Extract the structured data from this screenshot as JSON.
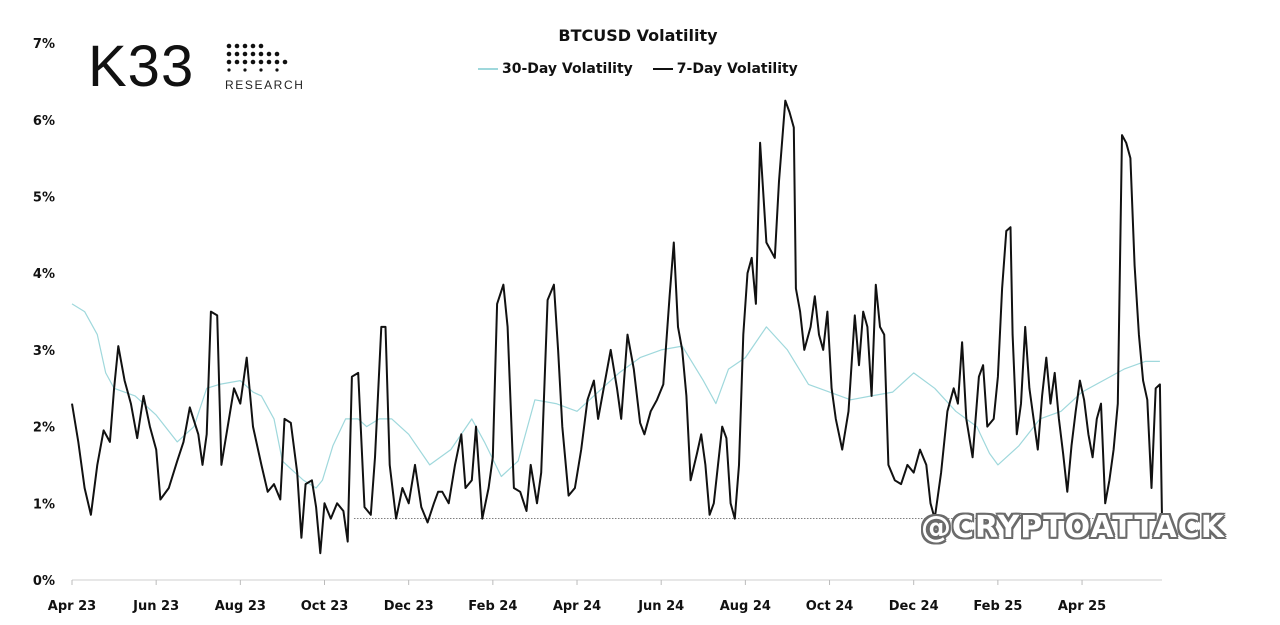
{
  "brand": {
    "logo_text": "K33",
    "logo_subtext": "RESEARCH"
  },
  "watermark": "@CRYPTOATTACK",
  "chart_data": {
    "type": "line",
    "title": "BTCUSD Volatility",
    "xlabel": "",
    "ylabel": "",
    "ylim": [
      0,
      7
    ],
    "y_ticks": [
      "0%",
      "1%",
      "2%",
      "3%",
      "4%",
      "5%",
      "6%",
      "7%"
    ],
    "x_ticks": [
      "Apr 23",
      "Jun 23",
      "Aug 23",
      "Oct 23",
      "Dec 23",
      "Feb 24",
      "Apr 24",
      "Jun 24",
      "Aug 24",
      "Oct 24",
      "Dec 24",
      "Feb 25",
      "Apr 25"
    ],
    "x_unit": "months since Apr 2023",
    "grid": false,
    "legend_position": "top-center",
    "reference_line": {
      "value": 0.8,
      "from_x": 6.7,
      "to_x": 25.85,
      "style": "dotted"
    },
    "series": [
      {
        "name": "30-Day Volatility",
        "color": "#9fd8dc",
        "points": [
          [
            0,
            3.6
          ],
          [
            0.3,
            3.5
          ],
          [
            0.6,
            3.2
          ],
          [
            0.8,
            2.7
          ],
          [
            1.0,
            2.5
          ],
          [
            1.5,
            2.4
          ],
          [
            2.0,
            2.15
          ],
          [
            2.5,
            1.8
          ],
          [
            2.9,
            2.0
          ],
          [
            3.2,
            2.5
          ],
          [
            3.5,
            2.55
          ],
          [
            4.0,
            2.6
          ],
          [
            4.3,
            2.45
          ],
          [
            4.5,
            2.4
          ],
          [
            4.8,
            2.1
          ],
          [
            5.0,
            1.55
          ],
          [
            5.2,
            1.45
          ],
          [
            5.5,
            1.3
          ],
          [
            5.8,
            1.2
          ],
          [
            5.95,
            1.3
          ],
          [
            6.2,
            1.75
          ],
          [
            6.5,
            2.1
          ],
          [
            6.8,
            2.1
          ],
          [
            7.0,
            2.0
          ],
          [
            7.3,
            2.1
          ],
          [
            7.6,
            2.1
          ],
          [
            8.0,
            1.9
          ],
          [
            8.5,
            1.5
          ],
          [
            9.0,
            1.7
          ],
          [
            9.5,
            2.1
          ],
          [
            9.8,
            1.8
          ],
          [
            10.2,
            1.35
          ],
          [
            10.6,
            1.55
          ],
          [
            11.0,
            2.35
          ],
          [
            11.5,
            2.3
          ],
          [
            12.0,
            2.2
          ],
          [
            12.5,
            2.45
          ],
          [
            13.0,
            2.7
          ],
          [
            13.5,
            2.9
          ],
          [
            14.0,
            3.0
          ],
          [
            14.5,
            3.05
          ],
          [
            15.0,
            2.6
          ],
          [
            15.3,
            2.3
          ],
          [
            15.6,
            2.75
          ],
          [
            16.0,
            2.9
          ],
          [
            16.5,
            3.3
          ],
          [
            17.0,
            3.0
          ],
          [
            17.5,
            2.55
          ],
          [
            18.0,
            2.45
          ],
          [
            18.5,
            2.35
          ],
          [
            19.0,
            2.4
          ],
          [
            19.5,
            2.45
          ],
          [
            20.0,
            2.7
          ],
          [
            20.5,
            2.5
          ],
          [
            21.0,
            2.2
          ],
          [
            21.5,
            2.0
          ],
          [
            21.8,
            1.65
          ],
          [
            22.0,
            1.5
          ],
          [
            22.5,
            1.75
          ],
          [
            23.0,
            2.1
          ],
          [
            23.5,
            2.2
          ],
          [
            24.0,
            2.45
          ],
          [
            24.5,
            2.6
          ],
          [
            25.0,
            2.75
          ],
          [
            25.5,
            2.85
          ],
          [
            25.85,
            2.85
          ]
        ]
      },
      {
        "name": "7-Day Volatility",
        "color": "#111111",
        "points": [
          [
            0,
            2.3
          ],
          [
            0.15,
            1.8
          ],
          [
            0.3,
            1.2
          ],
          [
            0.45,
            0.85
          ],
          [
            0.6,
            1.5
          ],
          [
            0.75,
            1.95
          ],
          [
            0.9,
            1.8
          ],
          [
            1.0,
            2.5
          ],
          [
            1.1,
            3.05
          ],
          [
            1.25,
            2.6
          ],
          [
            1.4,
            2.3
          ],
          [
            1.55,
            1.85
          ],
          [
            1.7,
            2.4
          ],
          [
            1.85,
            2.0
          ],
          [
            2.0,
            1.7
          ],
          [
            2.1,
            1.05
          ],
          [
            2.3,
            1.2
          ],
          [
            2.5,
            1.55
          ],
          [
            2.65,
            1.8
          ],
          [
            2.8,
            2.25
          ],
          [
            3.0,
            1.9
          ],
          [
            3.1,
            1.5
          ],
          [
            3.2,
            1.9
          ],
          [
            3.3,
            3.5
          ],
          [
            3.45,
            3.45
          ],
          [
            3.55,
            1.5
          ],
          [
            3.7,
            2.0
          ],
          [
            3.85,
            2.5
          ],
          [
            4.0,
            2.3
          ],
          [
            4.15,
            2.9
          ],
          [
            4.3,
            2.0
          ],
          [
            4.5,
            1.5
          ],
          [
            4.65,
            1.15
          ],
          [
            4.8,
            1.25
          ],
          [
            4.95,
            1.05
          ],
          [
            5.05,
            2.1
          ],
          [
            5.2,
            2.05
          ],
          [
            5.35,
            1.4
          ],
          [
            5.45,
            0.55
          ],
          [
            5.55,
            1.25
          ],
          [
            5.7,
            1.3
          ],
          [
            5.8,
            0.95
          ],
          [
            5.9,
            0.35
          ],
          [
            6.0,
            1.0
          ],
          [
            6.15,
            0.8
          ],
          [
            6.3,
            1.0
          ],
          [
            6.45,
            0.9
          ],
          [
            6.55,
            0.5
          ],
          [
            6.65,
            2.65
          ],
          [
            6.8,
            2.7
          ],
          [
            6.95,
            0.95
          ],
          [
            7.1,
            0.85
          ],
          [
            7.2,
            1.6
          ],
          [
            7.35,
            3.3
          ],
          [
            7.45,
            3.3
          ],
          [
            7.55,
            1.5
          ],
          [
            7.7,
            0.8
          ],
          [
            7.85,
            1.2
          ],
          [
            8.0,
            1.0
          ],
          [
            8.15,
            1.5
          ],
          [
            8.3,
            0.95
          ],
          [
            8.45,
            0.75
          ],
          [
            8.6,
            1.0
          ],
          [
            8.7,
            1.15
          ],
          [
            8.8,
            1.15
          ],
          [
            8.95,
            1.0
          ],
          [
            9.1,
            1.5
          ],
          [
            9.25,
            1.9
          ],
          [
            9.35,
            1.2
          ],
          [
            9.5,
            1.3
          ],
          [
            9.6,
            2.0
          ],
          [
            9.75,
            0.8
          ],
          [
            9.9,
            1.2
          ],
          [
            10.0,
            1.6
          ],
          [
            10.1,
            3.6
          ],
          [
            10.25,
            3.85
          ],
          [
            10.35,
            3.3
          ],
          [
            10.5,
            1.2
          ],
          [
            10.65,
            1.15
          ],
          [
            10.8,
            0.9
          ],
          [
            10.9,
            1.5
          ],
          [
            11.05,
            1.0
          ],
          [
            11.15,
            1.4
          ],
          [
            11.3,
            3.65
          ],
          [
            11.45,
            3.85
          ],
          [
            11.55,
            3.0
          ],
          [
            11.65,
            2.0
          ],
          [
            11.8,
            1.1
          ],
          [
            11.95,
            1.2
          ],
          [
            12.1,
            1.7
          ],
          [
            12.25,
            2.35
          ],
          [
            12.4,
            2.6
          ],
          [
            12.5,
            2.1
          ],
          [
            12.65,
            2.55
          ],
          [
            12.8,
            3.0
          ],
          [
            12.95,
            2.5
          ],
          [
            13.05,
            2.1
          ],
          [
            13.2,
            3.2
          ],
          [
            13.35,
            2.75
          ],
          [
            13.5,
            2.05
          ],
          [
            13.6,
            1.9
          ],
          [
            13.75,
            2.2
          ],
          [
            13.9,
            2.35
          ],
          [
            14.05,
            2.55
          ],
          [
            14.2,
            3.7
          ],
          [
            14.3,
            4.4
          ],
          [
            14.4,
            3.3
          ],
          [
            14.5,
            3.0
          ],
          [
            14.6,
            2.4
          ],
          [
            14.7,
            1.3
          ],
          [
            14.85,
            1.65
          ],
          [
            14.95,
            1.9
          ],
          [
            15.05,
            1.5
          ],
          [
            15.15,
            0.85
          ],
          [
            15.25,
            1.0
          ],
          [
            15.35,
            1.5
          ],
          [
            15.45,
            2.0
          ],
          [
            15.55,
            1.85
          ],
          [
            15.65,
            1.0
          ],
          [
            15.75,
            0.8
          ],
          [
            15.85,
            1.5
          ],
          [
            15.95,
            3.2
          ],
          [
            16.05,
            4.0
          ],
          [
            16.15,
            4.2
          ],
          [
            16.25,
            3.6
          ],
          [
            16.35,
            5.7
          ],
          [
            16.5,
            4.4
          ],
          [
            16.6,
            4.3
          ],
          [
            16.7,
            4.2
          ],
          [
            16.8,
            5.2
          ],
          [
            16.95,
            6.25
          ],
          [
            17.05,
            6.1
          ],
          [
            17.15,
            5.9
          ],
          [
            17.2,
            3.8
          ],
          [
            17.3,
            3.5
          ],
          [
            17.4,
            3.0
          ],
          [
            17.55,
            3.3
          ],
          [
            17.65,
            3.7
          ],
          [
            17.75,
            3.2
          ],
          [
            17.85,
            3.0
          ],
          [
            17.95,
            3.5
          ],
          [
            18.05,
            2.5
          ],
          [
            18.15,
            2.1
          ],
          [
            18.3,
            1.7
          ],
          [
            18.45,
            2.2
          ],
          [
            18.6,
            3.45
          ],
          [
            18.7,
            2.8
          ],
          [
            18.8,
            3.5
          ],
          [
            18.9,
            3.3
          ],
          [
            19.0,
            2.4
          ],
          [
            19.1,
            3.85
          ],
          [
            19.2,
            3.3
          ],
          [
            19.3,
            3.2
          ],
          [
            19.4,
            1.5
          ],
          [
            19.55,
            1.3
          ],
          [
            19.7,
            1.25
          ],
          [
            19.85,
            1.5
          ],
          [
            20.0,
            1.4
          ],
          [
            20.15,
            1.7
          ],
          [
            20.3,
            1.5
          ],
          [
            20.4,
            1.0
          ],
          [
            20.5,
            0.8
          ],
          [
            20.65,
            1.4
          ],
          [
            20.8,
            2.2
          ],
          [
            20.95,
            2.5
          ],
          [
            21.05,
            2.3
          ],
          [
            21.15,
            3.1
          ],
          [
            21.25,
            2.1
          ],
          [
            21.4,
            1.6
          ],
          [
            21.55,
            2.65
          ],
          [
            21.65,
            2.8
          ],
          [
            21.75,
            2.0
          ],
          [
            21.9,
            2.1
          ],
          [
            22.0,
            2.65
          ],
          [
            22.1,
            3.8
          ],
          [
            22.2,
            4.55
          ],
          [
            22.3,
            4.6
          ],
          [
            22.35,
            3.2
          ],
          [
            22.45,
            1.9
          ],
          [
            22.55,
            2.3
          ],
          [
            22.65,
            3.3
          ],
          [
            22.75,
            2.5
          ],
          [
            22.85,
            2.1
          ],
          [
            22.95,
            1.7
          ],
          [
            23.05,
            2.4
          ],
          [
            23.15,
            2.9
          ],
          [
            23.25,
            2.3
          ],
          [
            23.35,
            2.7
          ],
          [
            23.45,
            2.1
          ],
          [
            23.55,
            1.65
          ],
          [
            23.65,
            1.15
          ],
          [
            23.75,
            1.75
          ],
          [
            23.85,
            2.2
          ],
          [
            23.95,
            2.6
          ],
          [
            24.05,
            2.35
          ],
          [
            24.15,
            1.9
          ],
          [
            24.25,
            1.6
          ],
          [
            24.35,
            2.1
          ],
          [
            24.45,
            2.3
          ],
          [
            24.55,
            1.0
          ],
          [
            24.65,
            1.3
          ],
          [
            24.75,
            1.7
          ],
          [
            24.85,
            2.3
          ],
          [
            24.95,
            5.8
          ],
          [
            25.05,
            5.7
          ],
          [
            25.15,
            5.5
          ],
          [
            25.25,
            4.1
          ],
          [
            25.35,
            3.2
          ],
          [
            25.45,
            2.6
          ],
          [
            25.55,
            2.35
          ],
          [
            25.65,
            1.2
          ],
          [
            25.75,
            2.5
          ],
          [
            25.85,
            2.55
          ],
          [
            25.9,
            0.8
          ]
        ]
      }
    ]
  }
}
